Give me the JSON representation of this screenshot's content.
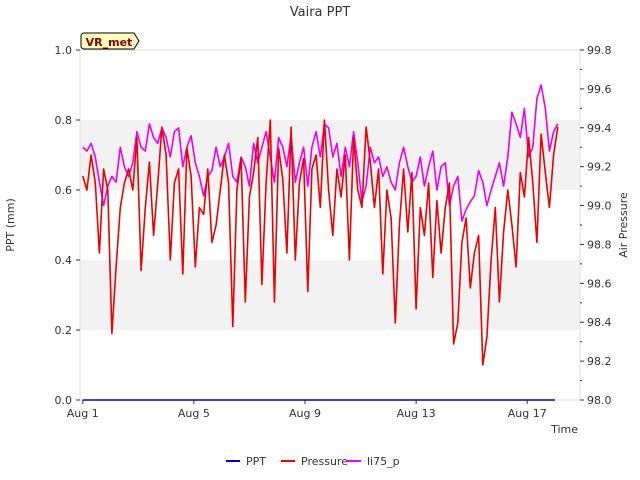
{
  "chart_data": {
    "type": "line",
    "title": "Vaira PPT",
    "badge": "VR_met",
    "xlabel": "Time",
    "ylabel_left": "PPT (mm)",
    "ylabel_right": "Air Pressure",
    "x_range_days": [
      0.9,
      18.9
    ],
    "y_left_range": [
      0.0,
      1.0
    ],
    "y_right_range": [
      98.0,
      99.8
    ],
    "x_ticks": [
      {
        "day": 1,
        "label": "Aug 1"
      },
      {
        "day": 5,
        "label": "Aug 5"
      },
      {
        "day": 9,
        "label": "Aug 9"
      },
      {
        "day": 13,
        "label": "Aug 13"
      },
      {
        "day": 17,
        "label": "Aug 17"
      }
    ],
    "y_left_ticks": [
      "0.0",
      "0.2",
      "0.4",
      "0.6",
      "0.8",
      "1.0"
    ],
    "y_right_ticks": [
      "98.0",
      "98.2",
      "98.4",
      "98.6",
      "98.8",
      "99.0",
      "99.2",
      "99.4",
      "99.6",
      "99.8"
    ],
    "shaded_bands_left": [
      [
        0.2,
        0.4
      ],
      [
        0.6,
        0.8
      ]
    ],
    "legend": [
      "PPT",
      "Pressure",
      "li75_p"
    ],
    "series": [
      {
        "name": "PPT",
        "axis": "left",
        "color": "#0000cc",
        "x": [
          1.0,
          18.0
        ],
        "y": [
          0.0,
          0.0
        ]
      },
      {
        "name": "Pressure",
        "axis": "left",
        "color": "#ee0000",
        "x": [
          1.0,
          1.15,
          1.3,
          1.45,
          1.6,
          1.75,
          1.9,
          2.05,
          2.2,
          2.35,
          2.5,
          2.65,
          2.8,
          2.95,
          3.1,
          3.25,
          3.4,
          3.55,
          3.7,
          3.85,
          4.0,
          4.15,
          4.3,
          4.45,
          4.6,
          4.75,
          4.9,
          5.05,
          5.2,
          5.35,
          5.5,
          5.65,
          5.8,
          5.95,
          6.1,
          6.25,
          6.4,
          6.55,
          6.7,
          6.85,
          7.0,
          7.15,
          7.3,
          7.45,
          7.6,
          7.75,
          7.9,
          8.05,
          8.2,
          8.35,
          8.5,
          8.65,
          8.8,
          8.95,
          9.1,
          9.25,
          9.4,
          9.55,
          9.7,
          9.85,
          10.0,
          10.15,
          10.3,
          10.45,
          10.6,
          10.75,
          10.9,
          11.05,
          11.2,
          11.35,
          11.5,
          11.65,
          11.8,
          11.95,
          12.1,
          12.25,
          12.4,
          12.55,
          12.7,
          12.85,
          13.0,
          13.15,
          13.3,
          13.45,
          13.6,
          13.75,
          13.9,
          14.05,
          14.2,
          14.35,
          14.5,
          14.65,
          14.8,
          14.95,
          15.1,
          15.25,
          15.4,
          15.55,
          15.7,
          15.85,
          16.0,
          16.15,
          16.3,
          16.45,
          16.6,
          16.75,
          16.9,
          17.05,
          17.2,
          17.35,
          17.5,
          17.65,
          17.8,
          17.95,
          18.1
        ],
        "y": [
          0.64,
          0.6,
          0.7,
          0.62,
          0.42,
          0.66,
          0.6,
          0.19,
          0.38,
          0.55,
          0.62,
          0.66,
          0.6,
          0.75,
          0.37,
          0.55,
          0.68,
          0.47,
          0.62,
          0.78,
          0.7,
          0.4,
          0.62,
          0.66,
          0.36,
          0.72,
          0.64,
          0.38,
          0.55,
          0.53,
          0.66,
          0.45,
          0.5,
          0.6,
          0.7,
          0.62,
          0.21,
          0.6,
          0.69,
          0.28,
          0.58,
          0.65,
          0.75,
          0.33,
          0.62,
          0.8,
          0.28,
          0.72,
          0.63,
          0.42,
          0.78,
          0.4,
          0.62,
          0.69,
          0.31,
          0.66,
          0.7,
          0.55,
          0.8,
          0.6,
          0.47,
          0.66,
          0.58,
          0.7,
          0.4,
          0.75,
          0.6,
          0.55,
          0.78,
          0.68,
          0.55,
          0.66,
          0.36,
          0.6,
          0.52,
          0.22,
          0.5,
          0.66,
          0.48,
          0.65,
          0.26,
          0.55,
          0.47,
          0.62,
          0.35,
          0.57,
          0.42,
          0.55,
          0.62,
          0.16,
          0.22,
          0.45,
          0.52,
          0.32,
          0.42,
          0.47,
          0.1,
          0.18,
          0.4,
          0.55,
          0.28,
          0.48,
          0.6,
          0.5,
          0.38,
          0.65,
          0.58,
          0.75,
          0.62,
          0.45,
          0.76,
          0.65,
          0.55,
          0.7,
          0.78
        ]
      },
      {
        "name": "li75_p",
        "axis": "right",
        "color": "#ee00ee",
        "x": [
          1.0,
          1.15,
          1.3,
          1.45,
          1.6,
          1.75,
          1.9,
          2.05,
          2.2,
          2.35,
          2.5,
          2.65,
          2.8,
          2.95,
          3.1,
          3.25,
          3.4,
          3.55,
          3.7,
          3.85,
          4.0,
          4.15,
          4.3,
          4.45,
          4.6,
          4.75,
          4.9,
          5.05,
          5.2,
          5.35,
          5.5,
          5.65,
          5.8,
          5.95,
          6.1,
          6.25,
          6.4,
          6.55,
          6.7,
          6.85,
          7.0,
          7.15,
          7.3,
          7.45,
          7.6,
          7.75,
          7.9,
          8.05,
          8.2,
          8.35,
          8.5,
          8.65,
          8.8,
          8.95,
          9.1,
          9.25,
          9.4,
          9.55,
          9.7,
          9.85,
          10.0,
          10.15,
          10.3,
          10.45,
          10.6,
          10.75,
          10.9,
          11.05,
          11.2,
          11.35,
          11.5,
          11.65,
          11.8,
          11.95,
          12.1,
          12.25,
          12.4,
          12.55,
          12.7,
          12.85,
          13.0,
          13.15,
          13.3,
          13.45,
          13.6,
          13.75,
          13.9,
          14.05,
          14.2,
          14.35,
          14.5,
          14.65,
          14.8,
          14.95,
          15.1,
          15.25,
          15.4,
          15.55,
          15.7,
          15.85,
          16.0,
          16.15,
          16.3,
          16.45,
          16.6,
          16.75,
          16.9,
          17.05,
          17.2,
          17.35,
          17.5,
          17.65,
          17.8,
          17.95,
          18.1
        ],
        "y": [
          99.3,
          99.28,
          99.32,
          99.25,
          99.12,
          99.0,
          99.1,
          99.15,
          99.12,
          99.3,
          99.2,
          99.15,
          99.22,
          99.38,
          99.3,
          99.28,
          99.42,
          99.35,
          99.32,
          99.4,
          99.35,
          99.25,
          99.38,
          99.4,
          99.2,
          99.3,
          99.36,
          99.22,
          99.15,
          99.05,
          99.15,
          99.18,
          99.3,
          99.2,
          99.25,
          99.32,
          99.15,
          99.12,
          99.25,
          99.2,
          99.1,
          99.32,
          99.22,
          99.3,
          99.38,
          99.25,
          99.12,
          99.35,
          99.3,
          99.2,
          99.36,
          99.12,
          99.22,
          99.3,
          99.1,
          99.3,
          99.38,
          99.25,
          99.42,
          99.4,
          99.25,
          99.32,
          99.15,
          99.3,
          99.2,
          99.38,
          99.22,
          99.02,
          99.1,
          99.3,
          99.22,
          99.25,
          99.15,
          99.2,
          99.12,
          99.08,
          99.22,
          99.3,
          99.2,
          99.12,
          99.15,
          99.25,
          99.1,
          99.2,
          99.28,
          99.08,
          99.2,
          99.22,
          99.0,
          99.1,
          99.15,
          98.92,
          98.98,
          99.02,
          99.05,
          99.18,
          99.12,
          99.0,
          99.08,
          99.15,
          99.22,
          99.1,
          99.25,
          99.48,
          99.42,
          99.35,
          99.5,
          99.25,
          99.3,
          99.55,
          99.62,
          99.5,
          99.28,
          99.38,
          99.42
        ]
      }
    ]
  }
}
